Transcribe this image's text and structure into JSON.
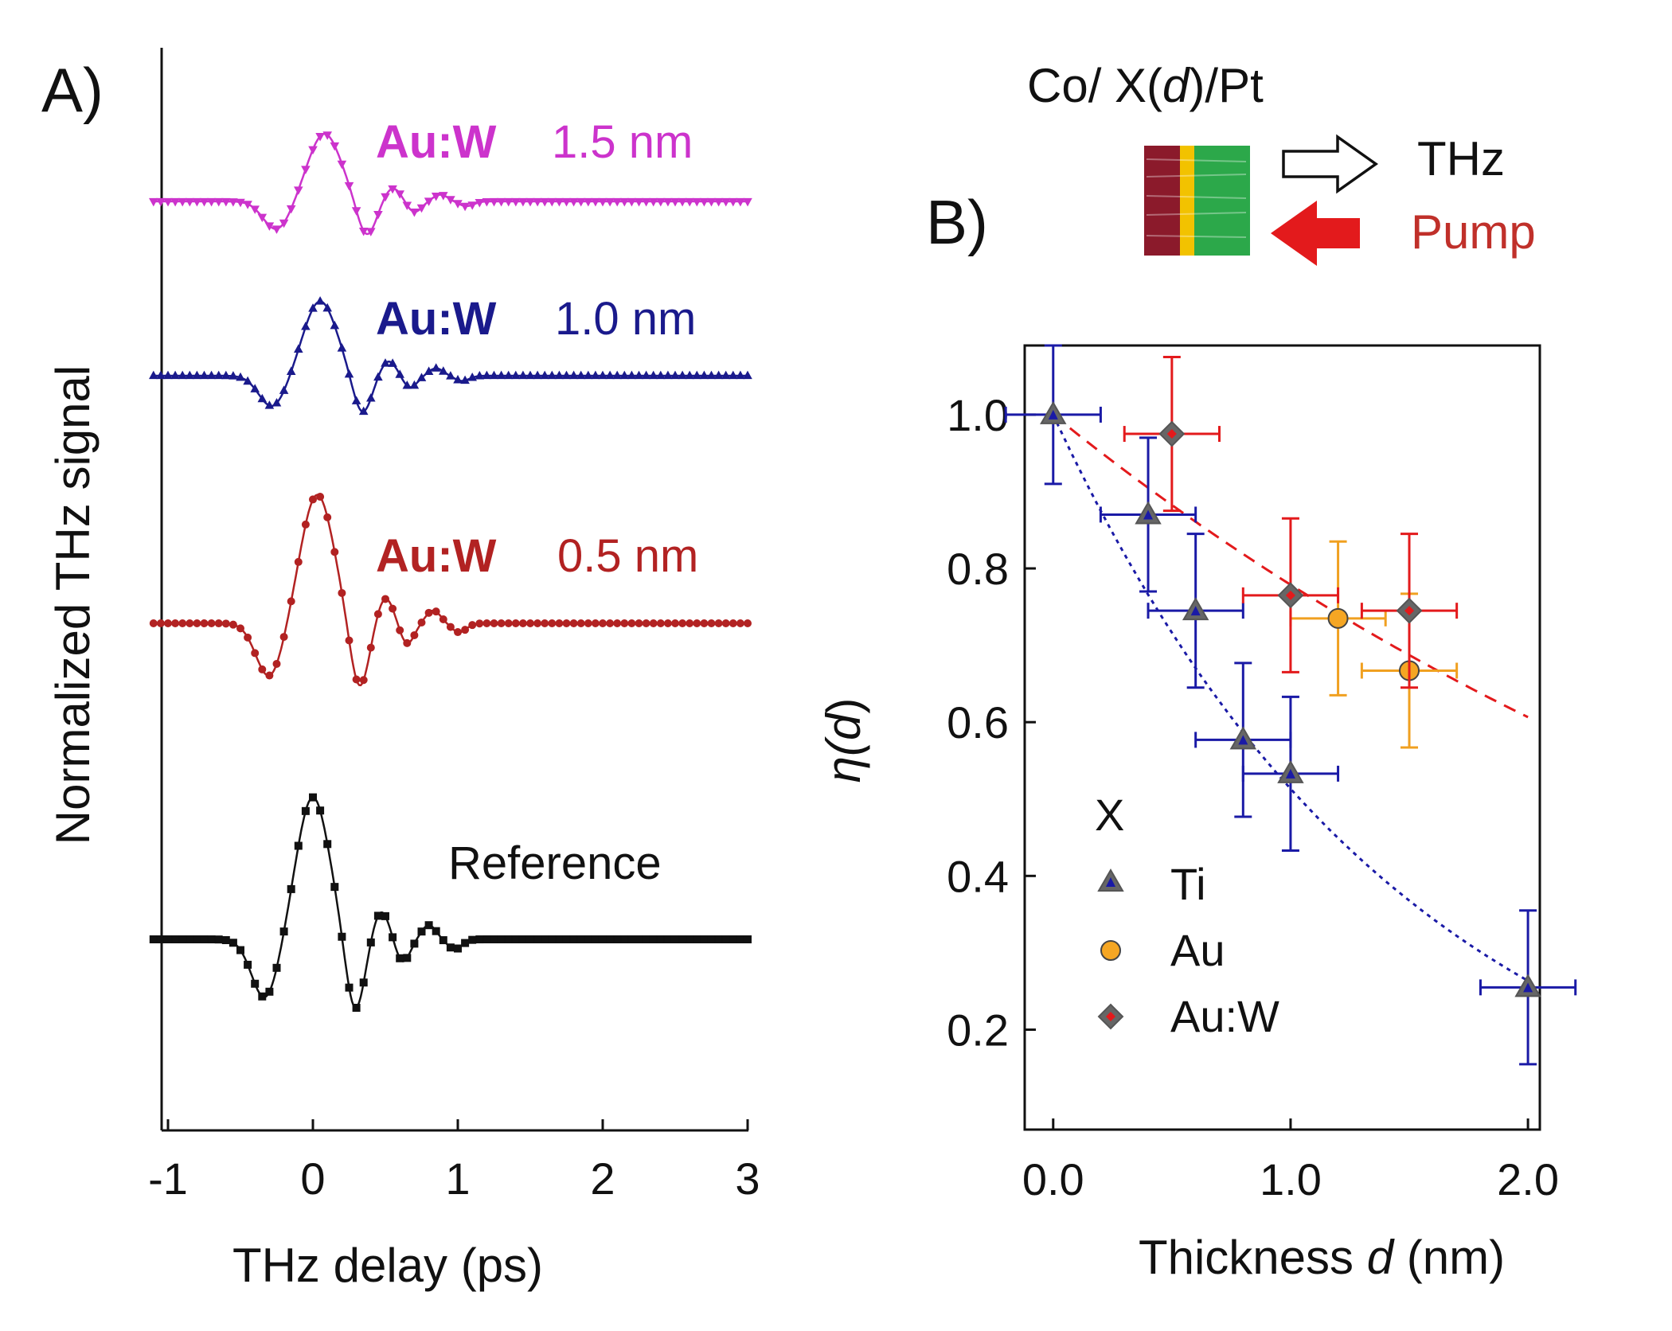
{
  "colors": {
    "aw15": "#cc33cc",
    "aw10": "#1a1a8c",
    "aw05": "#b22222",
    "ref": "#111111",
    "ti_fill": "#1a1aa6",
    "ti_line": "#1a1aa6",
    "au_fill": "#f5a623",
    "au_line": "#f0a020",
    "auw_fill": "#e31a1c",
    "auw_line": "#e31a1c",
    "marker_edge": "#555555",
    "co": "#8b1a2b",
    "x_layer": "#f2c200",
    "pt": "#2ca84a",
    "pump_arrow": "#e31a1c",
    "pump_text": "#c0302a"
  },
  "panelA": {
    "label": "A)",
    "ylabel": "Normalized THz signal",
    "xlabel": "THz delay (ps)",
    "traces": [
      {
        "material": "Au:W",
        "thickness": "1.5 nm",
        "color_key": "aw15",
        "marker": "triangle-down",
        "t0": 0.08,
        "amp": 1.0
      },
      {
        "material": "Au:W",
        "thickness": "1.0 nm",
        "color_key": "aw10",
        "marker": "triangle",
        "t0": 0.05,
        "amp": 1.1
      },
      {
        "material": "Au:W",
        "thickness": "0.5 nm",
        "color_key": "aw05",
        "marker": "circle",
        "t0": 0.03,
        "amp": 1.9
      },
      {
        "material": "",
        "thickness": "Reference",
        "color_key": "ref",
        "marker": "square",
        "t0": 0.0,
        "amp": 2.1
      }
    ]
  },
  "panelB": {
    "label": "B)",
    "inset": {
      "stack_prefix": "Co/ X(",
      "stack_var": "d",
      "stack_suffix": ")/Pt",
      "thz": "THz",
      "pump": "Pump"
    }
  },
  "chart_data": [
    {
      "type": "line",
      "title": "",
      "xlabel": "THz delay (ps)",
      "ylabel": "Normalized THz signal",
      "xlim": [
        -1.1,
        3.0
      ],
      "xticks": [
        "-1",
        "0",
        "1",
        "2",
        "3"
      ],
      "series_note": "Four vertically offset normalized THz waveforms (Au:W 1.5 nm, Au:W 1.0 nm, Au:W 0.5 nm, Reference)"
    },
    {
      "type": "scatter",
      "title": "",
      "xlabel_prefix": "Thickness ",
      "xlabel_var": "d",
      "xlabel_suffix": " (nm)",
      "ylabel_prefix": "η(",
      "ylabel_var": "d",
      "ylabel_suffix": ")",
      "xlim": [
        -0.12,
        2.05
      ],
      "ylim": [
        0.07,
        1.09
      ],
      "xticks": [
        {
          "v": 0.0,
          "label": "0.0"
        },
        {
          "v": 1.0,
          "label": "1.0"
        },
        {
          "v": 2.0,
          "label": "2.0"
        }
      ],
      "yticks": [
        {
          "v": 0.2,
          "label": "0.2"
        },
        {
          "v": 0.4,
          "label": "0.4"
        },
        {
          "v": 0.6,
          "label": "0.6"
        },
        {
          "v": 0.8,
          "label": "0.8"
        },
        {
          "v": 1.0,
          "label": "1.0"
        }
      ],
      "legend_title": "X",
      "series": [
        {
          "name": "Ti",
          "marker": "triangle",
          "fill_key": "ti_fill",
          "line_key": "ti_line",
          "points": [
            {
              "x": 0.0,
              "y": 1.0,
              "xerr": 0.2,
              "yerr": 0.09
            },
            {
              "x": 0.4,
              "y": 0.87,
              "xerr": 0.2,
              "yerr": 0.1
            },
            {
              "x": 0.6,
              "y": 0.745,
              "xerr": 0.2,
              "yerr": 0.1
            },
            {
              "x": 0.8,
              "y": 0.577,
              "xerr": 0.2,
              "yerr": 0.1
            },
            {
              "x": 1.0,
              "y": 0.533,
              "xerr": 0.2,
              "yerr": 0.1
            },
            {
              "x": 2.0,
              "y": 0.255,
              "xerr": 0.2,
              "yerr": 0.1
            }
          ]
        },
        {
          "name": "Au",
          "marker": "circle",
          "fill_key": "au_fill",
          "line_key": "au_line",
          "points": [
            {
              "x": 1.2,
              "y": 0.735,
              "xerr": 0.2,
              "yerr": 0.1
            },
            {
              "x": 1.5,
              "y": 0.667,
              "xerr": 0.2,
              "yerr": 0.1
            }
          ]
        },
        {
          "name": "Au:W",
          "marker": "diamond",
          "fill_key": "auw_fill",
          "line_key": "auw_line",
          "points": [
            {
              "x": 0.5,
              "y": 0.975,
              "xerr": 0.2,
              "yerr": 0.1
            },
            {
              "x": 1.0,
              "y": 0.765,
              "xerr": 0.2,
              "yerr": 0.1
            },
            {
              "x": 1.5,
              "y": 0.745,
              "xerr": 0.2,
              "yerr": 0.1
            }
          ]
        }
      ],
      "fits": [
        {
          "name": "Ti fit",
          "color_key": "ti_line",
          "style": "dotted",
          "decay_length_nm": 1.5,
          "x_range": [
            0.0,
            2.0
          ]
        },
        {
          "name": "Au:W fit",
          "color_key": "auw_line",
          "style": "dashed",
          "decay_length_nm": 4.0,
          "x_range": [
            0.0,
            2.0
          ]
        }
      ]
    }
  ]
}
